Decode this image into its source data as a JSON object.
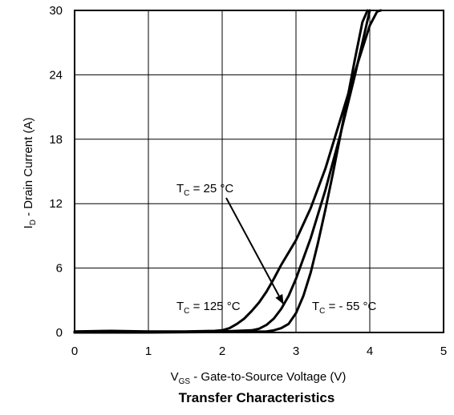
{
  "chart_data": {
    "type": "line",
    "title": "Transfer Characteristics",
    "xlabel": {
      "main": "V",
      "sub": "GS",
      "rest": " - Gate-to-Source Voltage (V)"
    },
    "ylabel": {
      "main": "I",
      "sub": "D",
      "rest": " - Drain Current (A)"
    },
    "xlim": [
      0,
      5
    ],
    "ylim": [
      0,
      30
    ],
    "xticks": [
      0,
      1,
      2,
      3,
      4,
      5
    ],
    "yticks": [
      0,
      6,
      12,
      18,
      24,
      30
    ],
    "xtick_labels": [
      "0",
      "1",
      "2",
      "3",
      "4",
      "5"
    ],
    "ytick_labels": [
      "0",
      "6",
      "12",
      "18",
      "24",
      "30"
    ],
    "grid": true,
    "series": [
      {
        "name": "125 °C",
        "x": [
          0,
          0.5,
          1.0,
          1.5,
          1.9,
          2.0,
          2.1,
          2.2,
          2.3,
          2.4,
          2.5,
          2.6,
          2.7,
          2.8,
          3.0,
          3.2,
          3.4,
          3.6,
          3.8,
          4.0,
          4.1,
          4.15
        ],
        "y": [
          0.1,
          0.15,
          0.1,
          0.1,
          0.15,
          0.2,
          0.4,
          0.8,
          1.3,
          2.0,
          2.8,
          3.8,
          5.0,
          6.3,
          8.6,
          11.6,
          15.3,
          19.8,
          24.3,
          28.6,
          29.9,
          30
        ]
      },
      {
        "name": "25 °C",
        "x": [
          0,
          1.0,
          2.0,
          2.4,
          2.5,
          2.6,
          2.7,
          2.8,
          2.9,
          3.0,
          3.2,
          3.4,
          3.6,
          3.8,
          3.95,
          4.0
        ],
        "y": [
          0,
          0.05,
          0.1,
          0.2,
          0.35,
          0.7,
          1.3,
          2.2,
          3.4,
          5.0,
          8.8,
          13.3,
          18.4,
          24.0,
          28.5,
          30
        ]
      },
      {
        "name": "- 55 °C",
        "x": [
          0,
          1.0,
          2.0,
          2.6,
          2.7,
          2.8,
          2.9,
          3.0,
          3.1,
          3.2,
          3.3,
          3.4,
          3.5,
          3.6,
          3.7,
          3.8,
          3.9,
          3.97
        ],
        "y": [
          0,
          0,
          0.05,
          0.1,
          0.2,
          0.4,
          0.8,
          1.8,
          3.4,
          5.6,
          8.4,
          11.5,
          14.8,
          18.3,
          21.9,
          25.5,
          28.9,
          30
        ]
      }
    ],
    "annotations": [
      {
        "main": "T",
        "sub": "C",
        "rest": " = 25 °C",
        "series": "25 °C"
      },
      {
        "main": "T",
        "sub": "C",
        "rest": " = 125 °C",
        "series": "125 °C"
      },
      {
        "main": "T",
        "sub": "C",
        "rest": " = - 55 °C",
        "series": "- 55 °C"
      }
    ]
  }
}
